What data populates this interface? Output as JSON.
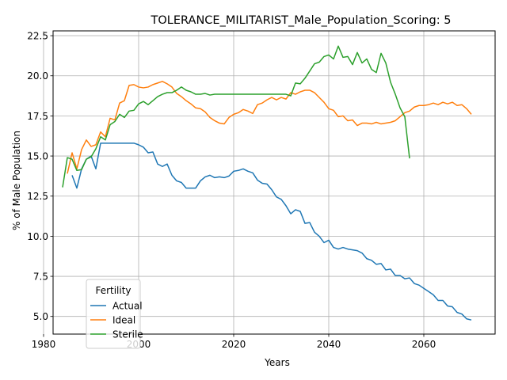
{
  "chart_data": {
    "type": "line",
    "title": "TOLERANCE_MILITARIST_Male_Population_Scoring: 5",
    "xlabel": "Years",
    "ylabel": "% of Male Population",
    "xlim": [
      1982,
      2075
    ],
    "ylim": [
      3.9,
      22.8
    ],
    "xticks": [
      1980,
      2000,
      2020,
      2040,
      2060
    ],
    "yticks": [
      5.0,
      7.5,
      10.0,
      12.5,
      15.0,
      17.5,
      20.0,
      22.5
    ],
    "grid": true,
    "legend": {
      "title": "Fertility",
      "placement": "lower-left"
    },
    "series": [
      {
        "name": "Actual",
        "color": "#1f77b4",
        "x": [
          1986,
          1987,
          1988,
          1989,
          1990,
          1991,
          1992,
          1993,
          1994,
          1995,
          1996,
          1997,
          1998,
          1999,
          2000,
          2001,
          2002,
          2003,
          2004,
          2005,
          2006,
          2007,
          2008,
          2009,
          2010,
          2011,
          2012,
          2013,
          2014,
          2015,
          2016,
          2017,
          2018,
          2019,
          2020,
          2021,
          2022,
          2023,
          2024,
          2025,
          2026,
          2027,
          2028,
          2029,
          2030,
          2031,
          2032,
          2033,
          2034,
          2035,
          2036,
          2037,
          2038,
          2039,
          2040,
          2041,
          2042,
          2043,
          2044,
          2045,
          2046,
          2047,
          2048,
          2049,
          2050,
          2051,
          2052,
          2053,
          2054,
          2055,
          2056,
          2057,
          2058,
          2059,
          2060,
          2061,
          2062,
          2063,
          2064,
          2065,
          2066,
          2067,
          2068,
          2069,
          2070
        ],
        "y": [
          13.8,
          13.0,
          14.2,
          14.8,
          15.0,
          14.2,
          15.8,
          15.8,
          15.8,
          15.8,
          15.8,
          15.8,
          15.8,
          15.8,
          15.7,
          15.55,
          15.2,
          15.25,
          14.5,
          14.35,
          14.5,
          13.8,
          13.45,
          13.35,
          13.0,
          13.0,
          13.0,
          13.45,
          13.7,
          13.8,
          13.65,
          13.7,
          13.65,
          13.75,
          14.05,
          14.1,
          14.2,
          14.05,
          13.95,
          13.5,
          13.3,
          13.25,
          12.9,
          12.45,
          12.3,
          11.9,
          11.4,
          11.65,
          11.55,
          10.8,
          10.85,
          10.25,
          10.0,
          9.6,
          9.75,
          9.3,
          9.2,
          9.3,
          9.2,
          9.15,
          9.1,
          8.95,
          8.6,
          8.5,
          8.25,
          8.3,
          7.9,
          7.95,
          7.55,
          7.55,
          7.35,
          7.4,
          7.05,
          6.95,
          6.75,
          6.55,
          6.35,
          6.0,
          6.0,
          5.65,
          5.6,
          5.25,
          5.15,
          4.85,
          4.78
        ]
      },
      {
        "name": "Ideal",
        "color": "#ff7f0e",
        "x": [
          1985,
          1986,
          1987,
          1988,
          1989,
          1990,
          1991,
          1992,
          1993,
          1994,
          1995,
          1996,
          1997,
          1998,
          1999,
          2000,
          2001,
          2002,
          2003,
          2004,
          2005,
          2006,
          2007,
          2008,
          2009,
          2010,
          2011,
          2012,
          2013,
          2014,
          2015,
          2016,
          2017,
          2018,
          2019,
          2020,
          2021,
          2022,
          2023,
          2024,
          2025,
          2026,
          2027,
          2028,
          2029,
          2030,
          2031,
          2032,
          2033,
          2034,
          2035,
          2036,
          2037,
          2038,
          2039,
          2040,
          2041,
          2042,
          2043,
          2044,
          2045,
          2046,
          2047,
          2048,
          2049,
          2050,
          2051,
          2052,
          2053,
          2054,
          2055,
          2056,
          2057,
          2058,
          2059,
          2060,
          2061,
          2062,
          2063,
          2064,
          2065,
          2066,
          2067,
          2068,
          2069,
          2070
        ],
        "y": [
          13.9,
          15.2,
          14.2,
          15.4,
          16.0,
          15.6,
          15.7,
          16.5,
          16.2,
          17.35,
          17.25,
          18.3,
          18.45,
          19.4,
          19.45,
          19.3,
          19.25,
          19.3,
          19.45,
          19.55,
          19.65,
          19.5,
          19.3,
          18.9,
          18.7,
          18.45,
          18.25,
          18.0,
          17.95,
          17.75,
          17.4,
          17.2,
          17.05,
          17.0,
          17.4,
          17.6,
          17.7,
          17.9,
          17.8,
          17.65,
          18.2,
          18.3,
          18.5,
          18.65,
          18.5,
          18.65,
          18.55,
          18.95,
          18.85,
          19.0,
          19.1,
          19.1,
          18.95,
          18.65,
          18.35,
          17.95,
          17.85,
          17.45,
          17.5,
          17.2,
          17.25,
          16.9,
          17.05,
          17.05,
          17.0,
          17.1,
          17.0,
          17.05,
          17.1,
          17.2,
          17.45,
          17.7,
          17.8,
          18.05,
          18.15,
          18.15,
          18.2,
          18.3,
          18.2,
          18.35,
          18.25,
          18.35,
          18.15,
          18.2,
          17.95,
          17.6
        ]
      },
      {
        "name": "Sterile",
        "color": "#2ca02c",
        "x": [
          1984,
          1985,
          1986,
          1987,
          1988,
          1989,
          1990,
          1991,
          1992,
          1993,
          1994,
          1995,
          1996,
          1997,
          1998,
          1999,
          2000,
          2001,
          2002,
          2003,
          2004,
          2005,
          2006,
          2007,
          2008,
          2009,
          2010,
          2011,
          2012,
          2013,
          2014,
          2015,
          2016,
          2017,
          2018,
          2019,
          2020,
          2021,
          2022,
          2023,
          2024,
          2025,
          2026,
          2027,
          2028,
          2029,
          2030,
          2031,
          2032,
          2033,
          2034,
          2035,
          2036,
          2037,
          2038,
          2039,
          2040,
          2041,
          2042,
          2043,
          2044,
          2045,
          2046,
          2047,
          2048,
          2049,
          2050,
          2051,
          2052,
          2053,
          2054,
          2055,
          2056,
          2057
        ],
        "y": [
          13.05,
          14.9,
          14.8,
          14.1,
          14.15,
          14.8,
          14.95,
          15.45,
          16.2,
          16.0,
          16.95,
          17.15,
          17.6,
          17.4,
          17.8,
          17.85,
          18.25,
          18.4,
          18.2,
          18.45,
          18.7,
          18.85,
          18.95,
          18.95,
          19.1,
          19.3,
          19.1,
          19.0,
          18.85,
          18.85,
          18.9,
          18.8,
          18.85,
          18.85,
          18.85,
          18.85,
          18.85,
          18.85,
          18.85,
          18.85,
          18.85,
          18.85,
          18.85,
          18.85,
          18.85,
          18.85,
          18.85,
          18.85,
          18.75,
          19.55,
          19.5,
          19.85,
          20.3,
          20.75,
          20.85,
          21.2,
          21.3,
          21.05,
          21.85,
          21.15,
          21.2,
          20.7,
          21.45,
          20.8,
          21.05,
          20.4,
          20.2,
          21.4,
          20.8,
          19.6,
          18.85,
          18.0,
          17.45,
          14.85
        ]
      }
    ]
  }
}
